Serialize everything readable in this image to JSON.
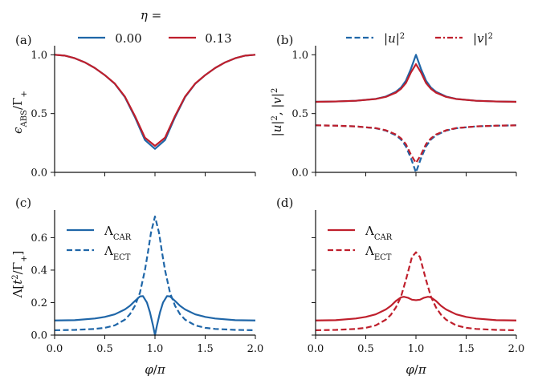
{
  "chart_data": [
    {
      "panel": "a",
      "type": "line",
      "label": "(a)",
      "ylabel": "ϵABS/Γ+",
      "xlim": [
        0,
        2
      ],
      "ylim": [
        0,
        1.05
      ],
      "yticks": [
        0.0,
        0.5,
        1.0
      ],
      "ytick_labels": [
        "0.0",
        "0.5",
        "1.0"
      ],
      "xtick_labels": [],
      "legend": {
        "title": "η =",
        "entries": [
          {
            "label": "0.00",
            "color": "#1f66a8",
            "style": "solid"
          },
          {
            "label": "0.13",
            "color": "#bf1f2c",
            "style": "solid"
          }
        ]
      },
      "series": [
        {
          "name": "η=0.00",
          "color": "#1f66a8",
          "style": "solid",
          "x": [
            0,
            0.1,
            0.2,
            0.3,
            0.4,
            0.5,
            0.6,
            0.7,
            0.8,
            0.9,
            1.0,
            1.1,
            1.2,
            1.3,
            1.4,
            1.5,
            1.6,
            1.7,
            1.8,
            1.9,
            2.0
          ],
          "values": [
            1.0,
            0.993,
            0.971,
            0.936,
            0.888,
            0.827,
            0.753,
            0.64,
            0.47,
            0.275,
            0.2,
            0.275,
            0.47,
            0.64,
            0.753,
            0.827,
            0.888,
            0.936,
            0.971,
            0.993,
            1.0
          ]
        },
        {
          "name": "η=0.13",
          "color": "#bf1f2c",
          "style": "solid",
          "x": [
            0,
            0.1,
            0.2,
            0.3,
            0.4,
            0.5,
            0.6,
            0.7,
            0.8,
            0.9,
            1.0,
            1.1,
            1.2,
            1.3,
            1.4,
            1.5,
            1.6,
            1.7,
            1.8,
            1.9,
            2.0
          ],
          "values": [
            1.0,
            0.993,
            0.971,
            0.936,
            0.888,
            0.827,
            0.755,
            0.645,
            0.48,
            0.295,
            0.225,
            0.295,
            0.48,
            0.645,
            0.755,
            0.827,
            0.888,
            0.936,
            0.971,
            0.993,
            1.0
          ]
        }
      ]
    },
    {
      "panel": "b",
      "type": "line",
      "label": "(b)",
      "ylabel": "|u|², |v|²",
      "xlim": [
        0,
        2
      ],
      "ylim": [
        0,
        1.05
      ],
      "yticks": [
        0.0,
        0.5,
        1.0
      ],
      "ytick_labels": [
        "0.0",
        "0.5",
        "1.0"
      ],
      "xtick_labels": [],
      "legend": {
        "entries": [
          {
            "label": "|u|²",
            "color": "#1f66a8",
            "style": "dashed"
          },
          {
            "label": "|v|²",
            "color": "#bf1f2c",
            "style": "dashdot"
          }
        ]
      },
      "series": [
        {
          "name": "|u|² η=0.00",
          "color": "#1f66a8",
          "style": "solid",
          "x": [
            0,
            0.2,
            0.4,
            0.6,
            0.7,
            0.8,
            0.85,
            0.9,
            0.95,
            1.0,
            1.05,
            1.1,
            1.15,
            1.2,
            1.3,
            1.4,
            1.6,
            1.8,
            2.0
          ],
          "values": [
            0.6,
            0.603,
            0.609,
            0.625,
            0.645,
            0.685,
            0.72,
            0.78,
            0.88,
            1.0,
            0.88,
            0.78,
            0.72,
            0.685,
            0.645,
            0.625,
            0.609,
            0.603,
            0.6
          ]
        },
        {
          "name": "|u|² η=0.13",
          "color": "#bf1f2c",
          "style": "solid",
          "x": [
            0,
            0.2,
            0.4,
            0.6,
            0.7,
            0.8,
            0.85,
            0.9,
            0.95,
            1.0,
            1.05,
            1.1,
            1.15,
            1.2,
            1.3,
            1.4,
            1.6,
            1.8,
            2.0
          ],
          "values": [
            0.6,
            0.603,
            0.609,
            0.624,
            0.642,
            0.678,
            0.71,
            0.76,
            0.85,
            0.92,
            0.85,
            0.76,
            0.71,
            0.678,
            0.642,
            0.624,
            0.609,
            0.603,
            0.6
          ]
        },
        {
          "name": "|v|² η=0.00",
          "color": "#1f66a8",
          "style": "dashed",
          "x": [
            0,
            0.2,
            0.4,
            0.6,
            0.7,
            0.8,
            0.85,
            0.9,
            0.95,
            1.0,
            1.05,
            1.1,
            1.15,
            1.2,
            1.3,
            1.4,
            1.6,
            1.8,
            2.0
          ],
          "values": [
            0.4,
            0.397,
            0.391,
            0.375,
            0.355,
            0.315,
            0.28,
            0.22,
            0.12,
            0.0,
            0.12,
            0.22,
            0.28,
            0.315,
            0.355,
            0.375,
            0.391,
            0.397,
            0.4
          ]
        },
        {
          "name": "|v|² η=0.13",
          "color": "#bf1f2c",
          "style": "dashed",
          "x": [
            0,
            0.2,
            0.4,
            0.6,
            0.7,
            0.8,
            0.85,
            0.9,
            0.95,
            1.0,
            1.05,
            1.1,
            1.15,
            1.2,
            1.3,
            1.4,
            1.6,
            1.8,
            2.0
          ],
          "values": [
            0.4,
            0.397,
            0.391,
            0.376,
            0.358,
            0.322,
            0.29,
            0.24,
            0.15,
            0.08,
            0.15,
            0.24,
            0.29,
            0.322,
            0.358,
            0.376,
            0.391,
            0.397,
            0.4
          ]
        }
      ]
    },
    {
      "panel": "c",
      "type": "line",
      "label": "(c)",
      "ylabel": "Λ[t²/Γ+]",
      "xlabel": "φ/π",
      "xlim": [
        0,
        2
      ],
      "ylim": [
        0,
        0.75
      ],
      "xticks": [
        0.0,
        0.5,
        1.0,
        1.5,
        2.0
      ],
      "xtick_labels": [
        "0.0",
        "0.5",
        "1.0",
        "1.5",
        "2.0"
      ],
      "yticks": [
        0.0,
        0.2,
        0.4,
        0.6
      ],
      "ytick_labels": [
        "0.0",
        "0.2",
        "0.4",
        "0.6"
      ],
      "legend": {
        "entries": [
          {
            "label": "ΛCAR",
            "color": "#1f66a8",
            "style": "solid"
          },
          {
            "label": "ΛECT",
            "color": "#1f66a8",
            "style": "dashed"
          }
        ]
      },
      "series": [
        {
          "name": "ΛCAR",
          "color": "#1f66a8",
          "style": "solid",
          "x": [
            0,
            0.2,
            0.4,
            0.5,
            0.6,
            0.7,
            0.75,
            0.8,
            0.85,
            0.88,
            0.92,
            0.95,
            0.98,
            1.0,
            1.02,
            1.05,
            1.08,
            1.12,
            1.15,
            1.2,
            1.25,
            1.3,
            1.4,
            1.5,
            1.6,
            1.8,
            2.0
          ],
          "values": [
            0.09,
            0.092,
            0.102,
            0.112,
            0.128,
            0.158,
            0.18,
            0.21,
            0.238,
            0.24,
            0.2,
            0.14,
            0.06,
            0.0,
            0.06,
            0.14,
            0.2,
            0.24,
            0.238,
            0.21,
            0.18,
            0.158,
            0.128,
            0.112,
            0.102,
            0.092,
            0.09
          ]
        },
        {
          "name": "ΛECT",
          "color": "#1f66a8",
          "style": "dashed",
          "x": [
            0,
            0.2,
            0.4,
            0.5,
            0.6,
            0.7,
            0.75,
            0.8,
            0.85,
            0.9,
            0.93,
            0.96,
            1.0,
            1.04,
            1.07,
            1.1,
            1.15,
            1.2,
            1.25,
            1.3,
            1.4,
            1.5,
            1.6,
            1.8,
            2.0
          ],
          "values": [
            0.03,
            0.032,
            0.038,
            0.045,
            0.06,
            0.095,
            0.128,
            0.18,
            0.26,
            0.4,
            0.51,
            0.63,
            0.73,
            0.63,
            0.51,
            0.4,
            0.26,
            0.18,
            0.128,
            0.095,
            0.06,
            0.045,
            0.038,
            0.032,
            0.03
          ]
        }
      ]
    },
    {
      "panel": "d",
      "type": "line",
      "label": "(d)",
      "xlabel": "φ/π",
      "xlim": [
        0,
        2
      ],
      "ylim": [
        0,
        0.75
      ],
      "xticks": [
        0.0,
        0.5,
        1.0,
        1.5,
        2.0
      ],
      "xtick_labels": [
        "0.0",
        "0.5",
        "1.0",
        "1.5",
        "2.0"
      ],
      "yticks": [
        0.0,
        0.2,
        0.4,
        0.6
      ],
      "ytick_labels": [],
      "legend": {
        "entries": [
          {
            "label": "ΛCAR",
            "color": "#bf1f2c",
            "style": "solid"
          },
          {
            "label": "ΛECT",
            "color": "#bf1f2c",
            "style": "dashed"
          }
        ]
      },
      "series": [
        {
          "name": "ΛCAR",
          "color": "#bf1f2c",
          "style": "solid",
          "x": [
            0,
            0.2,
            0.4,
            0.5,
            0.6,
            0.7,
            0.75,
            0.8,
            0.85,
            0.88,
            0.92,
            0.96,
            1.0,
            1.04,
            1.08,
            1.12,
            1.15,
            1.2,
            1.25,
            1.3,
            1.4,
            1.5,
            1.6,
            1.8,
            2.0
          ],
          "values": [
            0.09,
            0.092,
            0.102,
            0.112,
            0.128,
            0.158,
            0.18,
            0.21,
            0.232,
            0.236,
            0.23,
            0.218,
            0.215,
            0.218,
            0.23,
            0.236,
            0.232,
            0.21,
            0.18,
            0.158,
            0.128,
            0.112,
            0.102,
            0.092,
            0.09
          ]
        },
        {
          "name": "ΛECT",
          "color": "#bf1f2c",
          "style": "dashed",
          "x": [
            0,
            0.2,
            0.4,
            0.5,
            0.6,
            0.7,
            0.75,
            0.8,
            0.85,
            0.9,
            0.93,
            0.96,
            1.0,
            1.04,
            1.07,
            1.1,
            1.15,
            1.2,
            1.25,
            1.3,
            1.4,
            1.5,
            1.6,
            1.8,
            2.0
          ],
          "values": [
            0.03,
            0.032,
            0.038,
            0.045,
            0.06,
            0.095,
            0.125,
            0.17,
            0.235,
            0.34,
            0.41,
            0.48,
            0.51,
            0.48,
            0.41,
            0.34,
            0.235,
            0.17,
            0.125,
            0.095,
            0.06,
            0.045,
            0.038,
            0.032,
            0.03
          ]
        }
      ]
    }
  ]
}
